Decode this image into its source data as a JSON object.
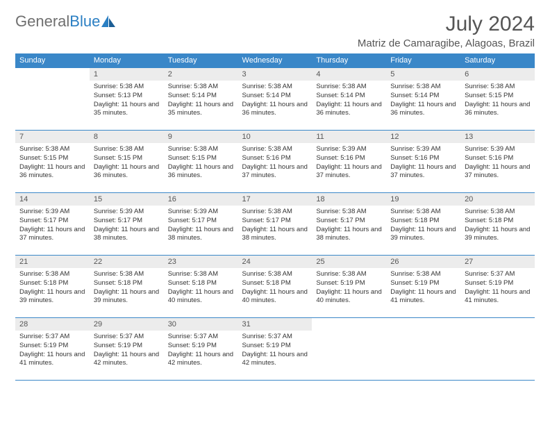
{
  "logo": {
    "text1": "General",
    "text2": "Blue"
  },
  "title": "July 2024",
  "location": "Matriz de Camaragibe, Alagoas, Brazil",
  "colors": {
    "header_bg": "#3a87c8",
    "header_text": "#ffffff",
    "daynum_bg": "#ececec",
    "border": "#3a87c8",
    "text_gray": "#555555",
    "logo_gray": "#6f6f6f",
    "logo_blue": "#2b7fc3"
  },
  "weekdays": [
    "Sunday",
    "Monday",
    "Tuesday",
    "Wednesday",
    "Thursday",
    "Friday",
    "Saturday"
  ],
  "weeks": [
    [
      null,
      {
        "n": "1",
        "sr": "5:38 AM",
        "ss": "5:13 PM",
        "dl": "11 hours and 35 minutes."
      },
      {
        "n": "2",
        "sr": "5:38 AM",
        "ss": "5:14 PM",
        "dl": "11 hours and 35 minutes."
      },
      {
        "n": "3",
        "sr": "5:38 AM",
        "ss": "5:14 PM",
        "dl": "11 hours and 36 minutes."
      },
      {
        "n": "4",
        "sr": "5:38 AM",
        "ss": "5:14 PM",
        "dl": "11 hours and 36 minutes."
      },
      {
        "n": "5",
        "sr": "5:38 AM",
        "ss": "5:14 PM",
        "dl": "11 hours and 36 minutes."
      },
      {
        "n": "6",
        "sr": "5:38 AM",
        "ss": "5:15 PM",
        "dl": "11 hours and 36 minutes."
      }
    ],
    [
      {
        "n": "7",
        "sr": "5:38 AM",
        "ss": "5:15 PM",
        "dl": "11 hours and 36 minutes."
      },
      {
        "n": "8",
        "sr": "5:38 AM",
        "ss": "5:15 PM",
        "dl": "11 hours and 36 minutes."
      },
      {
        "n": "9",
        "sr": "5:38 AM",
        "ss": "5:15 PM",
        "dl": "11 hours and 36 minutes."
      },
      {
        "n": "10",
        "sr": "5:38 AM",
        "ss": "5:16 PM",
        "dl": "11 hours and 37 minutes."
      },
      {
        "n": "11",
        "sr": "5:39 AM",
        "ss": "5:16 PM",
        "dl": "11 hours and 37 minutes."
      },
      {
        "n": "12",
        "sr": "5:39 AM",
        "ss": "5:16 PM",
        "dl": "11 hours and 37 minutes."
      },
      {
        "n": "13",
        "sr": "5:39 AM",
        "ss": "5:16 PM",
        "dl": "11 hours and 37 minutes."
      }
    ],
    [
      {
        "n": "14",
        "sr": "5:39 AM",
        "ss": "5:17 PM",
        "dl": "11 hours and 37 minutes."
      },
      {
        "n": "15",
        "sr": "5:39 AM",
        "ss": "5:17 PM",
        "dl": "11 hours and 38 minutes."
      },
      {
        "n": "16",
        "sr": "5:39 AM",
        "ss": "5:17 PM",
        "dl": "11 hours and 38 minutes."
      },
      {
        "n": "17",
        "sr": "5:38 AM",
        "ss": "5:17 PM",
        "dl": "11 hours and 38 minutes."
      },
      {
        "n": "18",
        "sr": "5:38 AM",
        "ss": "5:17 PM",
        "dl": "11 hours and 38 minutes."
      },
      {
        "n": "19",
        "sr": "5:38 AM",
        "ss": "5:18 PM",
        "dl": "11 hours and 39 minutes."
      },
      {
        "n": "20",
        "sr": "5:38 AM",
        "ss": "5:18 PM",
        "dl": "11 hours and 39 minutes."
      }
    ],
    [
      {
        "n": "21",
        "sr": "5:38 AM",
        "ss": "5:18 PM",
        "dl": "11 hours and 39 minutes."
      },
      {
        "n": "22",
        "sr": "5:38 AM",
        "ss": "5:18 PM",
        "dl": "11 hours and 39 minutes."
      },
      {
        "n": "23",
        "sr": "5:38 AM",
        "ss": "5:18 PM",
        "dl": "11 hours and 40 minutes."
      },
      {
        "n": "24",
        "sr": "5:38 AM",
        "ss": "5:18 PM",
        "dl": "11 hours and 40 minutes."
      },
      {
        "n": "25",
        "sr": "5:38 AM",
        "ss": "5:19 PM",
        "dl": "11 hours and 40 minutes."
      },
      {
        "n": "26",
        "sr": "5:38 AM",
        "ss": "5:19 PM",
        "dl": "11 hours and 41 minutes."
      },
      {
        "n": "27",
        "sr": "5:37 AM",
        "ss": "5:19 PM",
        "dl": "11 hours and 41 minutes."
      }
    ],
    [
      {
        "n": "28",
        "sr": "5:37 AM",
        "ss": "5:19 PM",
        "dl": "11 hours and 41 minutes."
      },
      {
        "n": "29",
        "sr": "5:37 AM",
        "ss": "5:19 PM",
        "dl": "11 hours and 42 minutes."
      },
      {
        "n": "30",
        "sr": "5:37 AM",
        "ss": "5:19 PM",
        "dl": "11 hours and 42 minutes."
      },
      {
        "n": "31",
        "sr": "5:37 AM",
        "ss": "5:19 PM",
        "dl": "11 hours and 42 minutes."
      },
      null,
      null,
      null
    ]
  ],
  "labels": {
    "sunrise": "Sunrise: ",
    "sunset": "Sunset: ",
    "daylight": "Daylight: "
  }
}
